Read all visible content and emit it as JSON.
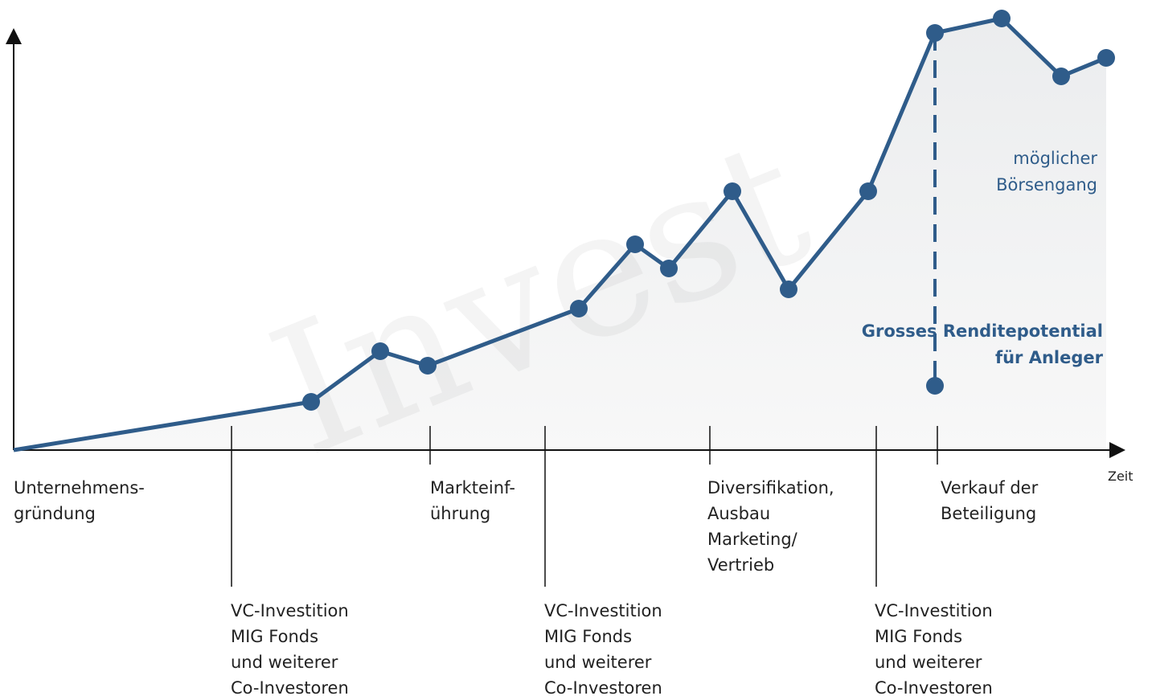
{
  "axis_label": "Zeit",
  "milestones_top": [
    {
      "lines": [
        "Unternehmens-",
        "gründung"
      ]
    },
    {
      "lines": [
        "Markteinf-",
        "ührung"
      ]
    },
    {
      "lines": [
        "Diversifikation,",
        "Ausbau",
        "Marketing/",
        "Vertrieb"
      ]
    },
    {
      "lines": [
        "Verkauf der",
        "Beteiligung"
      ]
    }
  ],
  "milestones_bottom": [
    {
      "lines": [
        "VC-Investition",
        "MIG Fonds",
        "und weiterer",
        "Co-Investoren"
      ]
    },
    {
      "lines": [
        "VC-Investition",
        "MIG Fonds",
        "und weiterer",
        "Co-Investoren"
      ]
    },
    {
      "lines": [
        "VC-Investition",
        "MIG Fonds",
        "und weiterer",
        "Co-Investoren"
      ]
    }
  ],
  "annotations": {
    "ipo": [
      "möglicher",
      "Börsengang"
    ],
    "return": [
      "Grosses Renditepotential",
      "für Anleger"
    ]
  }
}
